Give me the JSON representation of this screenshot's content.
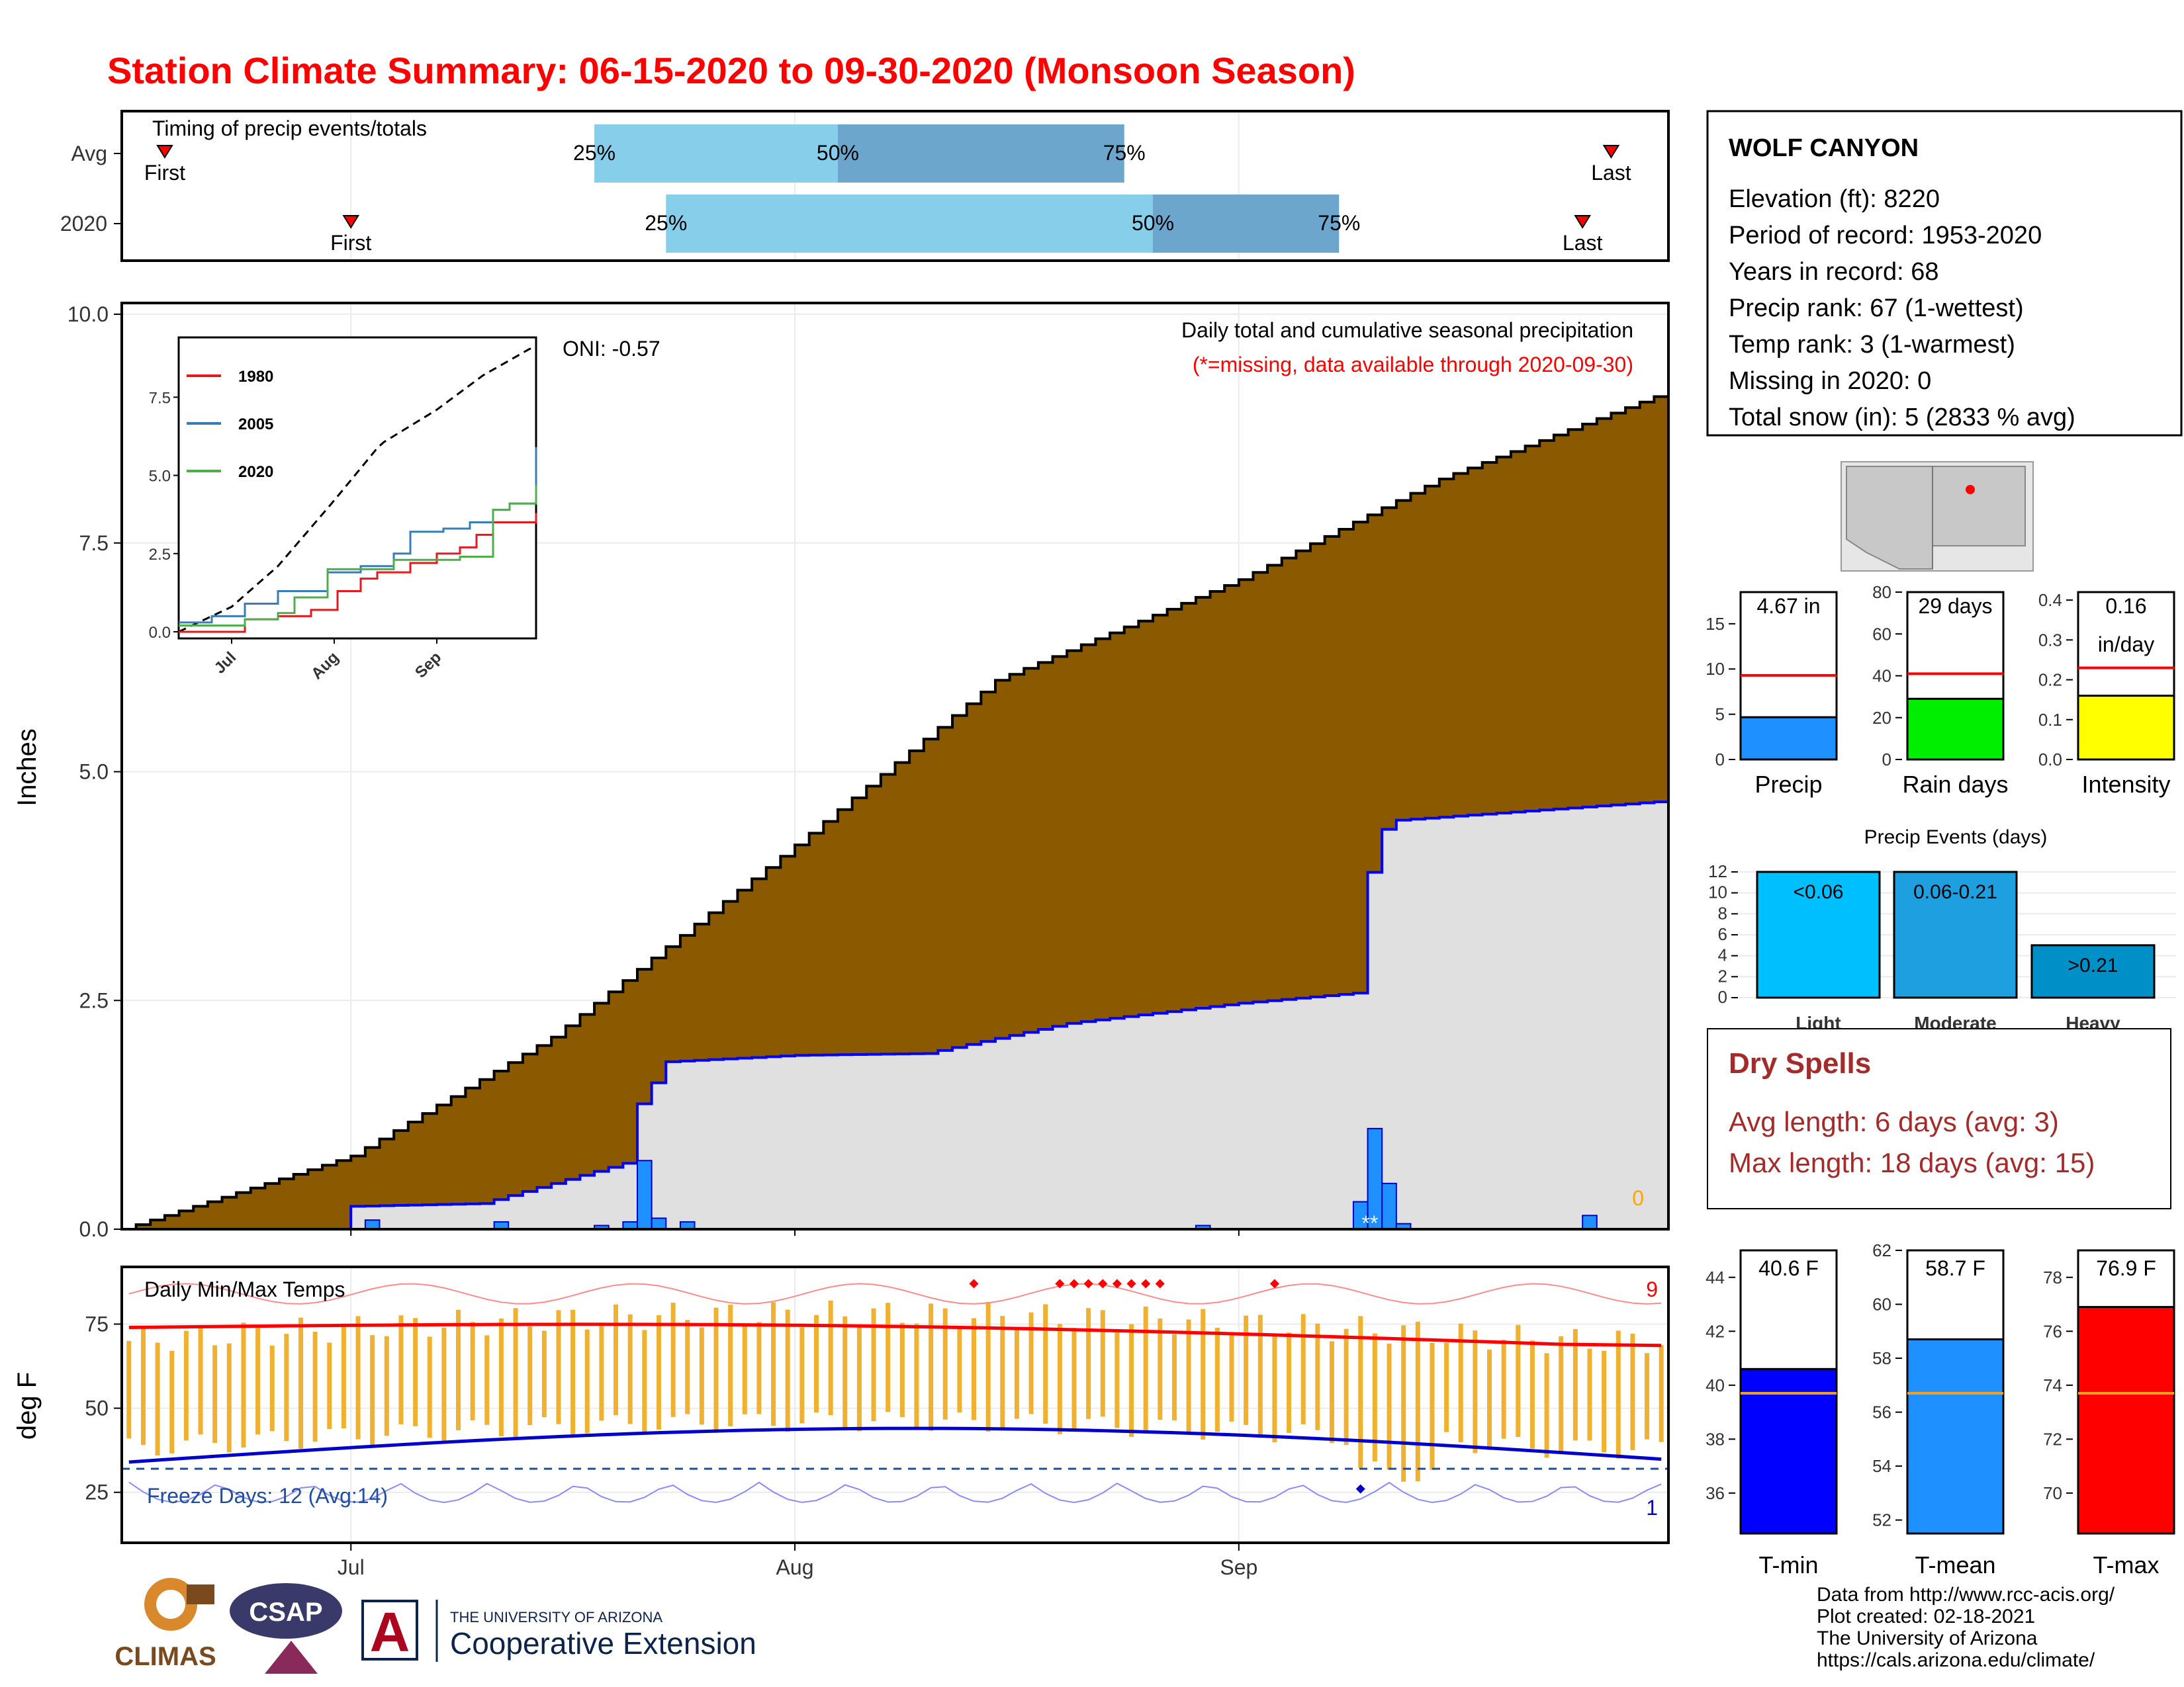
{
  "title": "Station Climate Summary: 06-15-2020 to 09-30-2020 (Monsoon Season)",
  "colors": {
    "title": "#ff0000",
    "precip_fill": "#8b5a00",
    "obs_area": "#e0e0e0",
    "obs_line": "#0000ff",
    "daily_bar": "#1e90ff",
    "temp_bar": "#f0b030",
    "avg_max": "#ff0000",
    "avg_min": "#0000cc",
    "dry_spell_text": "#a52a2a",
    "timing_light": "#87ceeb",
    "timing_dark": "#6ca6cd"
  },
  "timing": {
    "label": "Timing of precip events/totals",
    "rows": [
      {
        "name": "Avg",
        "first_label": "First",
        "last_label": "Last",
        "p25": "25%",
        "p50": "50%",
        "p75": "75%",
        "first_day": 3,
        "last_day": 104,
        "q25_day": 33,
        "q50_day": 50,
        "q75_day": 70
      },
      {
        "name": "2020",
        "first_label": "First",
        "last_label": "Last",
        "p25": "25%",
        "p50": "50%",
        "p75": "75%",
        "first_day": 16,
        "last_day": 102,
        "q25_day": 38,
        "q50_day": 72,
        "q75_day": 85
      }
    ]
  },
  "main_plot": {
    "ylabel": "Inches",
    "yticks": [
      "0.0",
      "2.5",
      "5.0",
      "7.5",
      "10.0"
    ],
    "xticks": [
      "Jul",
      "Aug",
      "Sep"
    ],
    "subtitle1": "Daily total and cumulative seasonal precipitation",
    "subtitle2": "(*=missing, data available through 2020-09-30)",
    "oni": "ONI: -0.57",
    "missing_count": "0",
    "missing_marks": "**"
  },
  "inset": {
    "yticks": [
      "0.0",
      "2.5",
      "5.0",
      "7.5"
    ],
    "xticks": [
      "Jul",
      "Aug",
      "Sep"
    ],
    "legend": [
      {
        "name": "1980",
        "color": "#e41a1c"
      },
      {
        "name": "2005",
        "color": "#377eb8"
      },
      {
        "name": "2020",
        "color": "#4daf4a"
      }
    ]
  },
  "temp_plot": {
    "label": "Daily Min/Max Temps",
    "ylabel": "deg F",
    "yticks": [
      "25",
      "50",
      "75"
    ],
    "freeze": "Freeze Days: 12 (Avg:14)",
    "hot_count": "9",
    "cold_count": "1"
  },
  "station": {
    "name": "WOLF CANYON",
    "lines": [
      "Elevation (ft): 8220",
      "Period of record: 1953-2020",
      "Years in record: 68",
      "Precip rank: 67 (1-wettest)",
      "Temp rank: 3 (1-warmest)",
      "Missing in 2020: 0",
      "Total snow (in): 5 (2833 % avg)"
    ]
  },
  "summary_bars": [
    {
      "label": "Precip",
      "value_text": "4.67 in",
      "value": 4.67,
      "avg": 9.3,
      "color": "#1e90ff",
      "ymax": 18.5,
      "ticks": [
        "0",
        "5",
        "10",
        "15"
      ],
      "tickvals": [
        0,
        5,
        10,
        15
      ]
    },
    {
      "label": "Rain days",
      "value_text": "29 days",
      "value": 29,
      "avg": 41,
      "color": "#00ee00",
      "ymax": 80,
      "ticks": [
        "0",
        "20",
        "40",
        "60",
        "80"
      ],
      "tickvals": [
        0,
        20,
        40,
        60,
        80
      ]
    },
    {
      "label": "Intensity",
      "value_text": "0.16",
      "value_text2": "in/day",
      "value": 0.16,
      "avg": 0.23,
      "color": "#ffff00",
      "ymax": 0.42,
      "ticks": [
        "0.0",
        "0.1",
        "0.2",
        "0.3",
        "0.4"
      ],
      "tickvals": [
        0,
        0.1,
        0.2,
        0.3,
        0.4
      ]
    }
  ],
  "precip_events": {
    "title": "Precip Events (days)",
    "yticks": [
      "0",
      "2",
      "4",
      "6",
      "8",
      "10",
      "12"
    ],
    "bars": [
      {
        "label": "Light",
        "range": "<0.06",
        "value": 12,
        "color": "#00bfff"
      },
      {
        "label": "Moderate",
        "range": "0.06-0.21",
        "value": 12,
        "color": "#1ea0e0"
      },
      {
        "label": "Heavy",
        "range": ">0.21",
        "value": 5,
        "color": "#0090c8"
      }
    ]
  },
  "dry_spells": {
    "title": "Dry Spells",
    "avg_line": "Avg length: 6 days (avg: 3)",
    "max_line": "Max length: 18 days (avg: 15)"
  },
  "temp_summary": [
    {
      "label": "T-min",
      "value_text": "40.6 F",
      "value": 40.6,
      "avg": 39.7,
      "color": "#0000ff",
      "ymin": 34.5,
      "ymax": 45,
      "ticks": [
        "36",
        "38",
        "40",
        "42",
        "44"
      ],
      "tickvals": [
        36,
        38,
        40,
        42,
        44
      ]
    },
    {
      "label": "T-mean",
      "value_text": "58.7 F",
      "value": 58.7,
      "avg": 56.7,
      "color": "#1e90ff",
      "ymin": 51.5,
      "ymax": 62,
      "ticks": [
        "52",
        "54",
        "56",
        "58",
        "60",
        "62"
      ],
      "tickvals": [
        52,
        54,
        56,
        58,
        60,
        62
      ]
    },
    {
      "label": "T-max",
      "value_text": "76.9 F",
      "value": 76.9,
      "avg": 73.7,
      "color": "#ff0000",
      "ymin": 68.5,
      "ymax": 79,
      "ticks": [
        "70",
        "72",
        "74",
        "76",
        "78"
      ],
      "tickvals": [
        70,
        72,
        74,
        76,
        78
      ]
    }
  ],
  "footer": {
    "lines": [
      "Data from http://www.rcc-acis.org/",
      "Plot created: 02-18-2021",
      "The University of Arizona",
      "https://cals.arizona.edu/climate/"
    ],
    "climas": "CLIMAS",
    "csap": "CSAP",
    "ua_small": "THE UNIVERSITY OF ARIZONA",
    "ua_big": "Cooperative Extension"
  },
  "chart_data": {
    "type": "area",
    "title": "Station Climate Summary: 06-15-2020 to 09-30-2020 (Monsoon Season)",
    "ylabel": "Inches",
    "ylim": [
      0,
      10
    ],
    "x_start": "2020-06-15",
    "x_end": "2020-09-30",
    "series": [
      {
        "name": "avg_cumulative",
        "x": [
          "2020-06-15",
          "2020-07-01",
          "2020-07-15",
          "2020-08-01",
          "2020-08-15",
          "2020-09-01",
          "2020-09-15",
          "2020-09-30"
        ],
        "values": [
          0.0,
          0.8,
          2.1,
          4.2,
          6.0,
          7.1,
          8.2,
          9.1
        ]
      },
      {
        "name": "2020_cumulative",
        "x": [
          "2020-06-15",
          "2020-06-30",
          "2020-07-01",
          "2020-07-10",
          "2020-07-20",
          "2020-07-21",
          "2020-07-23",
          "2020-08-01",
          "2020-08-10",
          "2020-08-20",
          "2020-09-01",
          "2020-09-09",
          "2020-09-10",
          "2020-09-11",
          "2020-09-12",
          "2020-09-30"
        ],
        "values": [
          0.0,
          0.0,
          0.25,
          0.28,
          0.72,
          1.37,
          1.83,
          1.9,
          1.92,
          2.25,
          2.47,
          2.58,
          3.9,
          4.37,
          4.47,
          4.67
        ]
      },
      {
        "name": "2020_daily",
        "x": [
          "2020-07-02",
          "2020-07-11",
          "2020-07-18",
          "2020-07-20",
          "2020-07-21",
          "2020-07-22",
          "2020-07-24",
          "2020-08-29",
          "2020-09-09",
          "2020-09-10",
          "2020-09-11",
          "2020-09-12",
          "2020-09-25"
        ],
        "values": [
          0.1,
          0.08,
          0.04,
          0.08,
          0.75,
          0.12,
          0.08,
          0.04,
          0.3,
          1.1,
          0.5,
          0.06,
          0.15
        ]
      }
    ]
  }
}
